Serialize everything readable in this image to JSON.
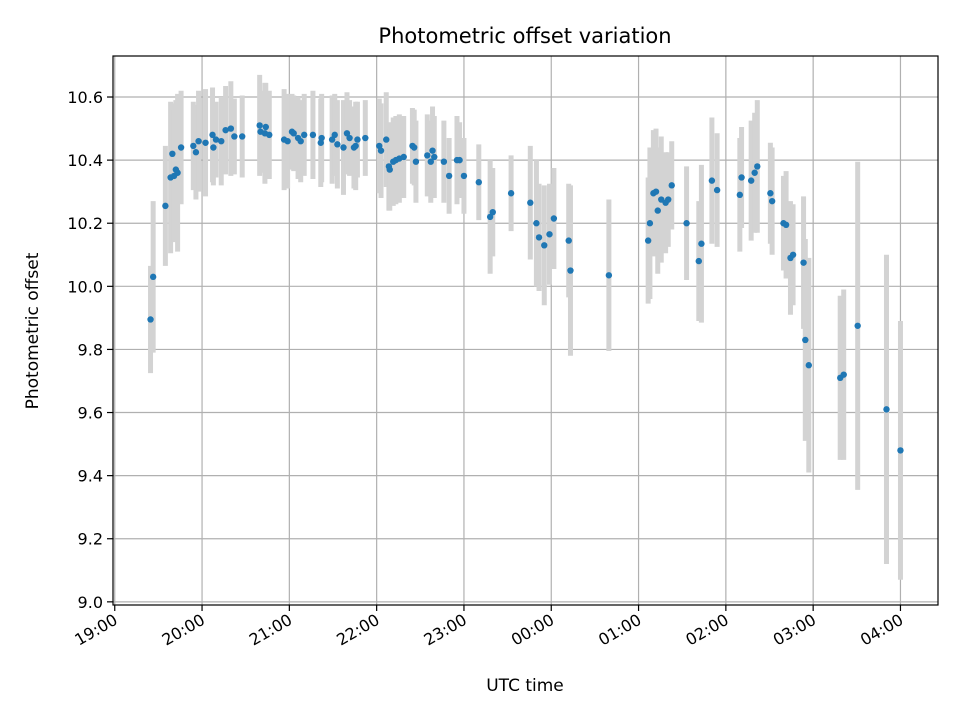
{
  "chart_data": {
    "type": "scatter",
    "title": "Photometric offset variation",
    "xlabel": "UTC time",
    "ylabel": "Photometric offset",
    "x_unit": "hours (19 = 19:00, 24 = 00:00 next day)",
    "xlim": [
      18.98,
      28.43
    ],
    "ylim": [
      8.99,
      10.73
    ],
    "grid": true,
    "x_ticks": [
      {
        "value": 19,
        "label": "19:00"
      },
      {
        "value": 20,
        "label": "20:00"
      },
      {
        "value": 21,
        "label": "21:00"
      },
      {
        "value": 22,
        "label": "22:00"
      },
      {
        "value": 23,
        "label": "23:00"
      },
      {
        "value": 24,
        "label": "00:00"
      },
      {
        "value": 25,
        "label": "01:00"
      },
      {
        "value": 26,
        "label": "02:00"
      },
      {
        "value": 27,
        "label": "03:00"
      },
      {
        "value": 28,
        "label": "04:00"
      }
    ],
    "y_ticks": [
      {
        "value": 9.0,
        "label": "9.0"
      },
      {
        "value": 9.2,
        "label": "9.2"
      },
      {
        "value": 9.4,
        "label": "9.4"
      },
      {
        "value": 9.6,
        "label": "9.6"
      },
      {
        "value": 9.8,
        "label": "9.8"
      },
      {
        "value": 10.0,
        "label": "10.0"
      },
      {
        "value": 10.2,
        "label": "10.2"
      },
      {
        "value": 10.4,
        "label": "10.4"
      },
      {
        "value": 10.6,
        "label": "10.6"
      }
    ],
    "colors": {
      "point": "#1f77b4",
      "errorbar": "#d3d3d3"
    },
    "series": [
      {
        "points": [
          [
            19.41,
            9.895,
            0.17
          ],
          [
            19.44,
            10.03,
            0.24
          ],
          [
            19.58,
            10.255,
            0.19
          ],
          [
            19.64,
            10.345,
            0.24
          ],
          [
            19.66,
            10.42,
            0.16
          ],
          [
            19.68,
            10.35,
            0.21
          ],
          [
            19.7,
            10.37,
            0.22
          ],
          [
            19.72,
            10.36,
            0.25
          ],
          [
            19.76,
            10.44,
            0.18
          ],
          [
            19.9,
            10.445,
            0.14
          ],
          [
            19.93,
            10.425,
            0.15
          ],
          [
            19.96,
            10.46,
            0.16
          ],
          [
            20.04,
            10.455,
            0.17
          ],
          [
            20.12,
            10.48,
            0.15
          ],
          [
            20.13,
            10.44,
            0.12
          ],
          [
            20.16,
            10.465,
            0.12
          ],
          [
            20.22,
            10.46,
            0.14
          ],
          [
            20.27,
            10.495,
            0.14
          ],
          [
            20.33,
            10.5,
            0.15
          ],
          [
            20.37,
            10.475,
            0.12
          ],
          [
            20.46,
            10.475,
            0.13
          ],
          [
            20.66,
            10.51,
            0.16
          ],
          [
            20.67,
            10.49,
            0.13
          ],
          [
            20.72,
            10.485,
            0.16
          ],
          [
            20.73,
            10.505,
            0.14
          ],
          [
            20.77,
            10.48,
            0.14
          ],
          [
            20.94,
            10.465,
            0.16
          ],
          [
            20.98,
            10.46,
            0.15
          ],
          [
            21.03,
            10.49,
            0.12
          ],
          [
            21.05,
            10.485,
            0.12
          ],
          [
            21.1,
            10.47,
            0.13
          ],
          [
            21.13,
            10.46,
            0.13
          ],
          [
            21.17,
            10.48,
            0.13
          ],
          [
            21.27,
            10.48,
            0.14
          ],
          [
            21.36,
            10.455,
            0.14
          ],
          [
            21.37,
            10.47,
            0.14
          ],
          [
            21.49,
            10.465,
            0.14
          ],
          [
            21.52,
            10.48,
            0.13
          ],
          [
            21.55,
            10.45,
            0.14
          ],
          [
            21.62,
            10.44,
            0.15
          ],
          [
            21.66,
            10.485,
            0.13
          ],
          [
            21.69,
            10.47,
            0.12
          ],
          [
            21.74,
            10.44,
            0.13
          ],
          [
            21.76,
            10.445,
            0.14
          ],
          [
            21.78,
            10.465,
            0.12
          ],
          [
            21.87,
            10.47,
            0.12
          ],
          [
            22.03,
            10.445,
            0.15
          ],
          [
            22.05,
            10.43,
            0.15
          ],
          [
            22.11,
            10.465,
            0.15
          ],
          [
            22.14,
            10.38,
            0.14
          ],
          [
            22.15,
            10.37,
            0.13
          ],
          [
            22.19,
            10.395,
            0.14
          ],
          [
            22.22,
            10.4,
            0.14
          ],
          [
            22.26,
            10.405,
            0.14
          ],
          [
            22.31,
            10.41,
            0.13
          ],
          [
            22.41,
            10.445,
            0.12
          ],
          [
            22.43,
            10.44,
            0.12
          ],
          [
            22.45,
            10.395,
            0.13
          ],
          [
            22.58,
            10.415,
            0.13
          ],
          [
            22.62,
            10.395,
            0.13
          ],
          [
            22.64,
            10.43,
            0.14
          ],
          [
            22.66,
            10.41,
            0.13
          ],
          [
            22.77,
            10.395,
            0.13
          ],
          [
            22.83,
            10.35,
            0.12
          ],
          [
            22.92,
            10.4,
            0.14
          ],
          [
            22.95,
            10.4,
            0.12
          ],
          [
            23.0,
            10.35,
            0.12
          ],
          [
            23.17,
            10.33,
            0.12
          ],
          [
            23.3,
            10.22,
            0.18
          ],
          [
            23.33,
            10.235,
            0.14
          ],
          [
            23.54,
            10.295,
            0.12
          ],
          [
            23.76,
            10.265,
            0.18
          ],
          [
            23.83,
            10.2,
            0.2
          ],
          [
            23.86,
            10.155,
            0.17
          ],
          [
            23.92,
            10.13,
            0.19
          ],
          [
            23.98,
            10.165,
            0.16
          ],
          [
            24.03,
            10.215,
            0.16
          ],
          [
            24.2,
            10.145,
            0.18
          ],
          [
            24.22,
            10.05,
            0.27
          ],
          [
            24.66,
            10.035,
            0.24
          ],
          [
            25.11,
            10.145,
            0.2
          ],
          [
            25.13,
            10.2,
            0.24
          ],
          [
            25.17,
            10.295,
            0.2
          ],
          [
            25.2,
            10.3,
            0.2
          ],
          [
            25.22,
            10.24,
            0.2
          ],
          [
            25.26,
            10.275,
            0.2
          ],
          [
            25.31,
            10.265,
            0.16
          ],
          [
            25.34,
            10.275,
            0.15
          ],
          [
            25.38,
            10.32,
            0.14
          ],
          [
            25.55,
            10.2,
            0.18
          ],
          [
            25.69,
            10.08,
            0.19
          ],
          [
            25.72,
            10.135,
            0.25
          ],
          [
            25.84,
            10.335,
            0.2
          ],
          [
            25.9,
            10.305,
            0.18
          ],
          [
            26.16,
            10.29,
            0.18
          ],
          [
            26.18,
            10.345,
            0.16
          ],
          [
            26.29,
            10.335,
            0.19
          ],
          [
            26.33,
            10.36,
            0.19
          ],
          [
            26.36,
            10.38,
            0.21
          ],
          [
            26.51,
            10.295,
            0.16
          ],
          [
            26.53,
            10.27,
            0.17
          ],
          [
            26.66,
            10.2,
            0.15
          ],
          [
            26.69,
            10.195,
            0.17
          ],
          [
            26.74,
            10.09,
            0.18
          ],
          [
            26.77,
            10.1,
            0.16
          ],
          [
            26.89,
            10.075,
            0.21
          ],
          [
            26.91,
            9.83,
            0.32
          ],
          [
            26.95,
            9.75,
            0.34
          ],
          [
            27.31,
            9.71,
            0.26
          ],
          [
            27.35,
            9.72,
            0.27
          ],
          [
            27.51,
            9.875,
            0.52
          ],
          [
            27.84,
            9.61,
            0.49
          ],
          [
            28.0,
            9.48,
            0.41
          ]
        ]
      }
    ]
  }
}
